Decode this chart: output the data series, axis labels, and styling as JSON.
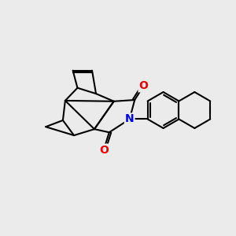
{
  "background_color": "#ebebeb",
  "bond_color": "#000000",
  "bond_width": 1.5,
  "atom_colors": {
    "N": "#0000ee",
    "O": "#ee0000"
  },
  "figsize": [
    3.0,
    3.0
  ],
  "dpi": 100,
  "xlim": [
    0,
    10
  ],
  "ylim": [
    0,
    10
  ]
}
